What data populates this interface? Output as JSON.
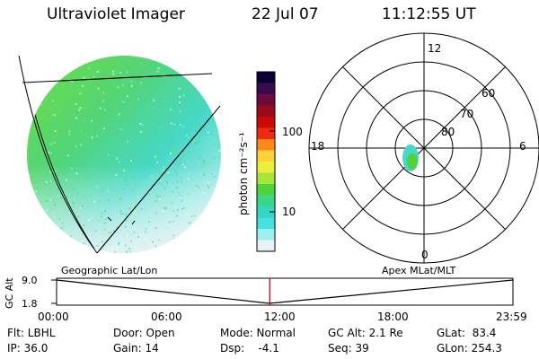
{
  "header": {
    "instrument": "Ultraviolet Imager",
    "date": "22 Jul 07",
    "time": "11:12:55 UT"
  },
  "colorbar": {
    "label": "photon cm⁻²s⁻¹",
    "ticks": [
      "100",
      "10"
    ],
    "colors": [
      "#0b0033",
      "#3b0a4e",
      "#6d0a3d",
      "#9a0a1c",
      "#c80a0a",
      "#ef2a12",
      "#ff8a1a",
      "#ffd23a",
      "#e9ef3a",
      "#a6e63a",
      "#4fd23a",
      "#3ad68a",
      "#37d6c4",
      "#45e0e0",
      "#9ef0ef",
      "#e6f4f4"
    ]
  },
  "polar": {
    "mlt_labels": {
      "top": "12",
      "left": "18",
      "right": "6",
      "bottom": "0"
    },
    "lat_labels": [
      "60",
      "70",
      "80"
    ]
  },
  "timeline": {
    "y_axis_label": "GC Alt",
    "y_ticks": [
      "9.0",
      "1.8"
    ],
    "left_title": "Geographic Lat/Lon",
    "right_title": "Apex MLat/MLT",
    "x_ticks": [
      "00:00",
      "06:00",
      "12:00",
      "18:00",
      "23:59"
    ],
    "current_time_fraction": 0.4672
  },
  "info": {
    "filter": "Flt: LBHL",
    "ip": "IP: 36.0",
    "door": "Door: Open",
    "gain": "Gain: 14",
    "mode": "Mode: Normal",
    "dsp": "Dsp:    -4.1",
    "gc_alt": "GC Alt: 2.1 Re",
    "seq": "Seq: 39",
    "glat": "GLat:  83.4",
    "glon": "GLon: 254.3"
  }
}
